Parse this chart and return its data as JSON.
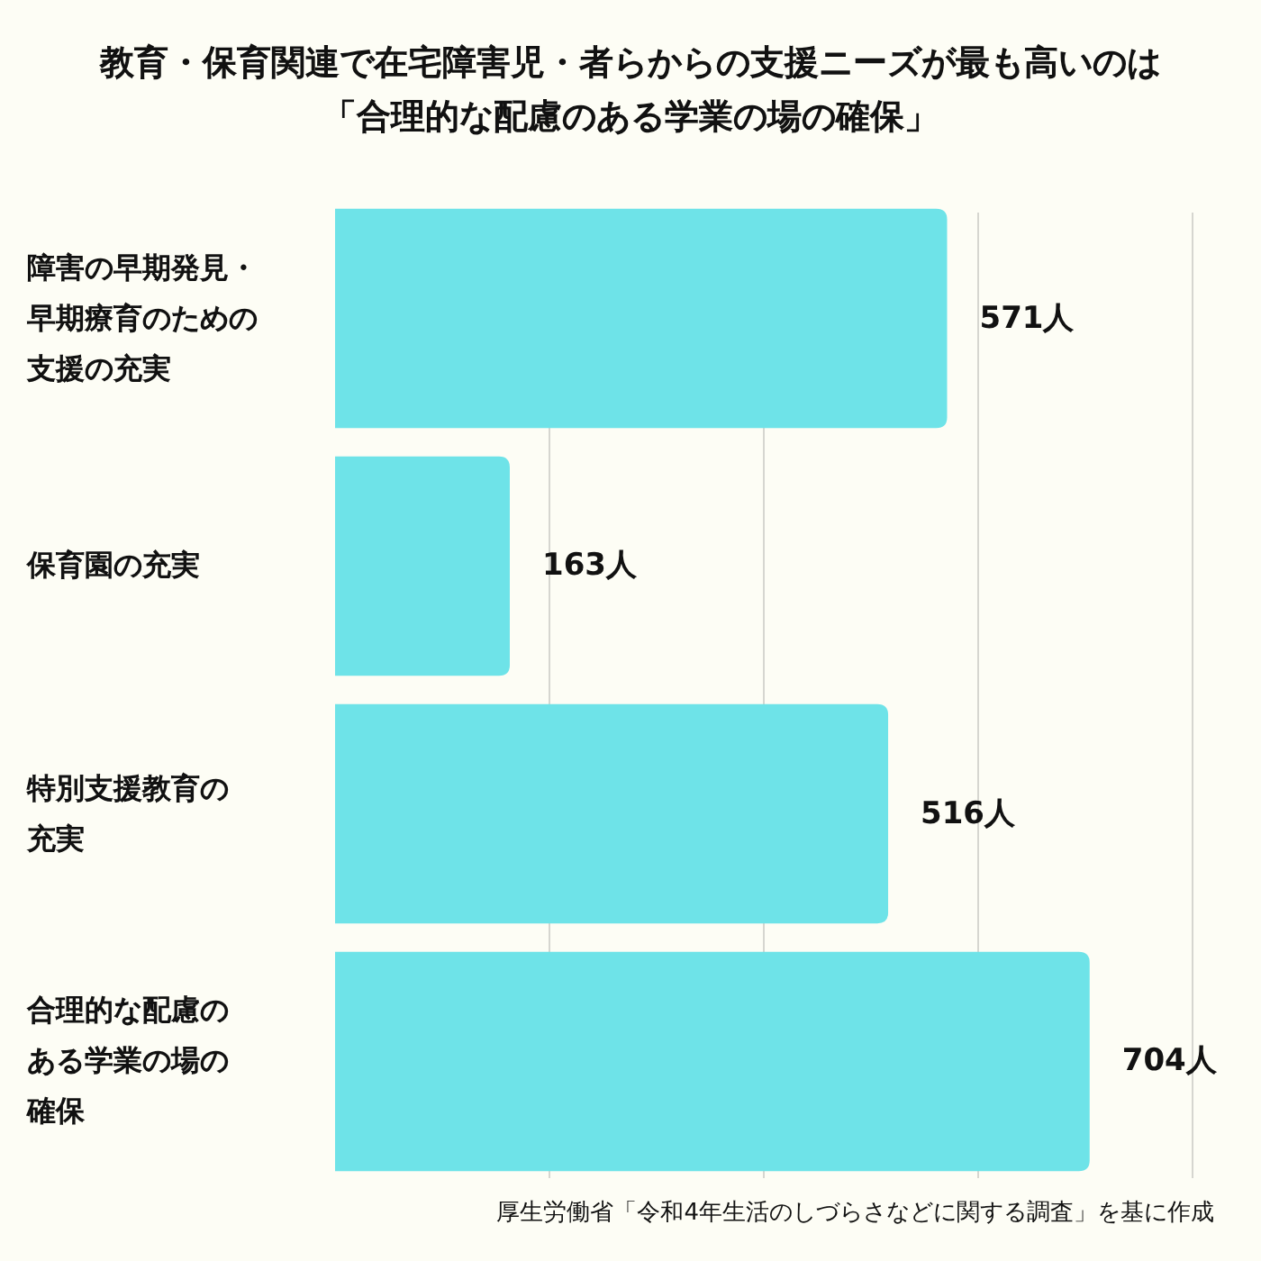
{
  "chart_data": {
    "type": "bar",
    "orientation": "horizontal",
    "title": "教育・保育関連で在宅障害児・者らからの支援ニーズが最も高いのは「合理的な配慮のある学業の場の確保」",
    "categories": [
      "障害の早期発見・早期療育のための支援の充実",
      "保育園の充実",
      "特別支援教育の充実",
      "合理的な配慮のある学業の場の確保"
    ],
    "values": [
      571,
      163,
      516,
      704
    ],
    "value_labels": [
      "571人",
      "163人",
      "516人",
      "704人"
    ],
    "color": "#6ee3e8",
    "xlim": [
      0,
      800
    ],
    "xticks": [
      {
        "value": 200,
        "label": null
      },
      {
        "value": 400,
        "label": null
      },
      {
        "value": 600,
        "label": null
      },
      {
        "value": 800,
        "label": null
      }
    ],
    "grid": "x",
    "annotations": [
      "厚生労働省「令和4年生活のしづらさなどに関する調査」を基に作成"
    ]
  }
}
